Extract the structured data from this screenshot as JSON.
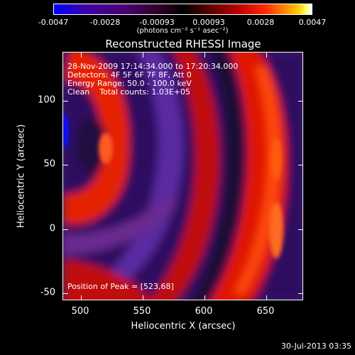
{
  "colorbar": {
    "ticks": [
      "-0.0047",
      "-0.0028",
      "-0.00093",
      "0.00093",
      "0.0028",
      "0.0047"
    ],
    "unit_label": "(photons cm⁻² s⁻¹ asec⁻²)"
  },
  "chart_data": {
    "type": "heatmap",
    "title": "Reconstructed RHESSI Image",
    "xlabel": "Heliocentric X (arcsec)",
    "ylabel": "Heliocentric Y (arcsec)",
    "xlim": [
      484,
      677
    ],
    "ylim": [
      -56,
      138
    ],
    "x_ticks": [
      "500",
      "550",
      "600",
      "650"
    ],
    "y_ticks": [
      "100",
      "50",
      "0",
      "-50"
    ],
    "color_range": [
      -0.0047,
      0.0047
    ],
    "peak": [
      523,
      68
    ],
    "annotations": {
      "line1": "28-Nov-2009 17:14:34.000 to 17:20:34.000",
      "line2": "Detectors: 4F 5F 6F 7F 8F, Att 0",
      "line3": "Energy Range: 50.0 - 100.0 keV",
      "line4": "Clean    Total counts: 1.03E+05",
      "peak_text": "Position of Peak = [523,68]"
    },
    "colors": {
      "positive": "#ff2200",
      "negative": "#5a1a9a",
      "minimum": "#0000ff"
    }
  },
  "timestamp": "30-Jul-2013 03:35"
}
